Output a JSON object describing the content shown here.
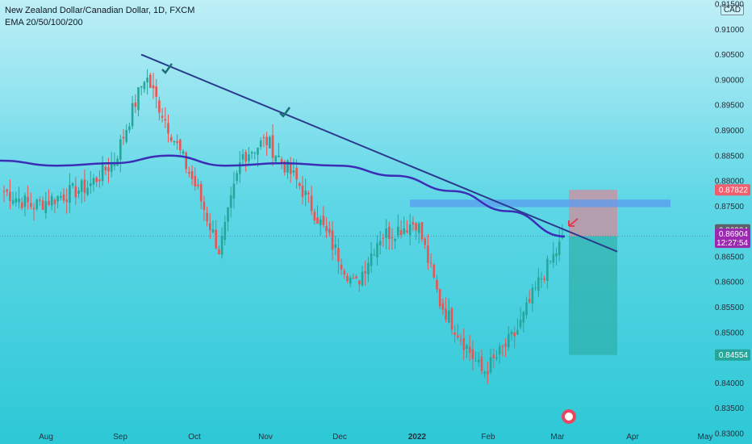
{
  "header": {
    "symbol_title": "New Zealand Dollar/Canadian Dollar, 1D, FXCM",
    "indicator_label": "EMA 20/50/100/200",
    "currency": "CAD"
  },
  "price_axis": {
    "labels": [
      "0.91500",
      "0.91000",
      "0.90500",
      "0.90000",
      "0.89500",
      "0.89000",
      "0.88500",
      "0.88000",
      "0.87500",
      "0.87000",
      "0.86500",
      "0.86000",
      "0.85500",
      "0.85000",
      "0.84500",
      "0.84000",
      "0.83500",
      "0.83000"
    ],
    "range": [
      0.83,
      0.915
    ]
  },
  "time_axis": {
    "labels": [
      "Aug",
      "Sep",
      "Oct",
      "Nov",
      "Dec",
      "2022",
      "Feb",
      "Mar",
      "Apr",
      "May"
    ],
    "bold_label": "2022"
  },
  "price_badges": {
    "stop_loss": {
      "text": "0.87822",
      "color": "#f05e6e"
    },
    "last_close_gray": {
      "text": "0.86904",
      "color": "#5d606b"
    },
    "current": {
      "text": "0.86904",
      "countdown": "12:27:54",
      "color": "#9c27b0"
    },
    "take_profit": {
      "text": "0.84554",
      "color": "#26a69a"
    }
  },
  "colors": {
    "up_candle": "#26a69a",
    "down_candle": "#ef5350",
    "ema": "#3b2db5",
    "trendline": "#2a3a8c",
    "resistance_zone": "#5b9bf0",
    "check_mark": "#1a6f6f",
    "risk_zone": "#f07a8a",
    "reward_zone": "#26a69a"
  },
  "chart_data": {
    "type": "candlestick",
    "symbol": "NZDCAD",
    "timeframe": "1D",
    "ylim": [
      0.83,
      0.915
    ],
    "x_ticks": [
      "Aug",
      "Sep",
      "Oct",
      "Nov",
      "Dec",
      "2022",
      "Feb",
      "Mar",
      "Apr",
      "May"
    ],
    "approx_close_path": [
      {
        "period": "late Jul",
        "close": 0.878
      },
      {
        "period": "Aug",
        "close": 0.875
      },
      {
        "period": "late Aug",
        "close": 0.879
      },
      {
        "period": "Sep",
        "close": 0.884
      },
      {
        "period": "mid Sep",
        "close": 0.901
      },
      {
        "period": "late Sep",
        "close": 0.886
      },
      {
        "period": "Oct",
        "close": 0.878
      },
      {
        "period": "mid Oct",
        "close": 0.866
      },
      {
        "period": "late Oct",
        "close": 0.885
      },
      {
        "period": "Nov",
        "close": 0.888
      },
      {
        "period": "mid Nov",
        "close": 0.879
      },
      {
        "period": "Dec",
        "close": 0.865
      },
      {
        "period": "mid Dec",
        "close": 0.859
      },
      {
        "period": "late Dec",
        "close": 0.869
      },
      {
        "period": "2022",
        "close": 0.872
      },
      {
        "period": "mid Jan",
        "close": 0.856
      },
      {
        "period": "late Jan",
        "close": 0.842
      },
      {
        "period": "Feb",
        "close": 0.844
      },
      {
        "period": "mid Feb",
        "close": 0.85
      },
      {
        "period": "late Feb",
        "close": 0.86
      },
      {
        "period": "Mar",
        "close": 0.869
      }
    ],
    "ema_200_approx": [
      0.884,
      0.883,
      0.8835,
      0.885,
      0.883,
      0.8835,
      0.883,
      0.881,
      0.878,
      0.874,
      0.869
    ],
    "trendline": {
      "from_price": 0.905,
      "from_period": "mid Sep",
      "to_price": 0.866,
      "to_period": "late Mar"
    },
    "resistance_zone": [
      0.8748,
      0.8763
    ],
    "position": {
      "side": "short",
      "entry": 0.86904,
      "stop": 0.87822,
      "target": 0.84554
    },
    "annotations": [
      "check at Sep high",
      "check at Nov high",
      "sell arrow at Mar"
    ]
  }
}
